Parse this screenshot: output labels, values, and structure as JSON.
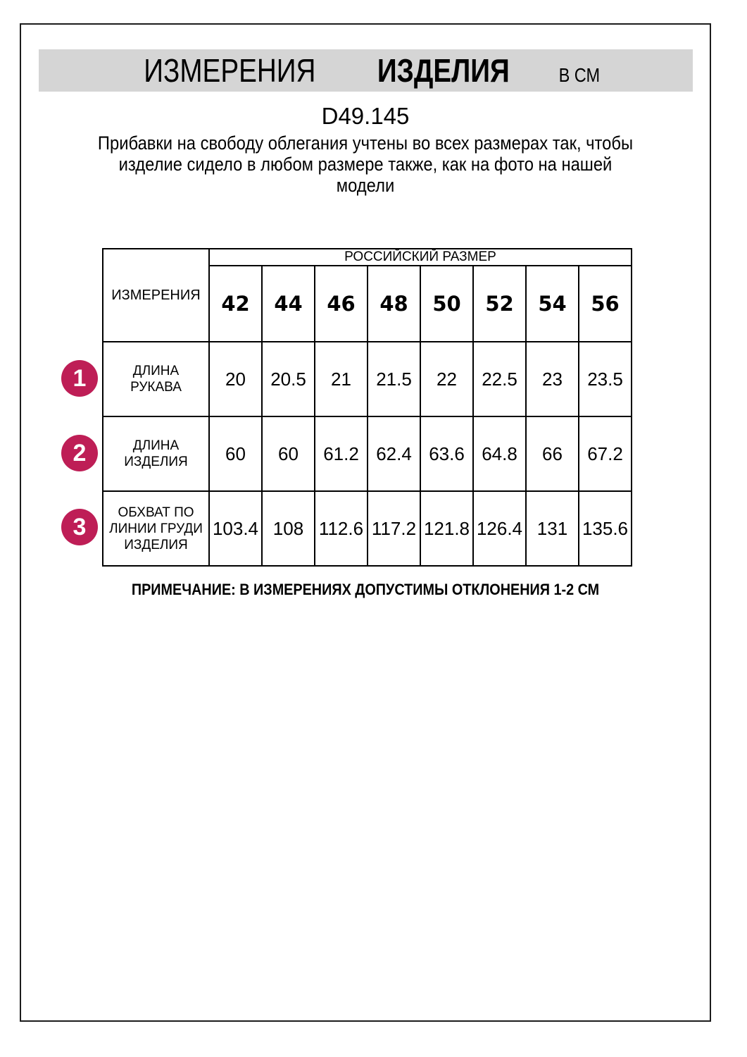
{
  "header": {
    "title_word1": "ИЗМЕРЕНИЯ",
    "title_word2": "ИЗДЕЛИЯ",
    "unit": "В СМ"
  },
  "article": "D49.145",
  "description": {
    "line1": "Прибавки на свободу облегания учтены во всех размерах так, чтобы",
    "line2": "изделие сидело в любом размере также, как на фото на нашей",
    "line3": "модели"
  },
  "table": {
    "corner_header": "ИЗМЕРЕНИЯ",
    "group_header": "РОССИЙСКИЙ РАЗМЕР",
    "sizes": [
      "42",
      "44",
      "46",
      "48",
      "50",
      "52",
      "54",
      "56"
    ],
    "rows": [
      {
        "num": "1",
        "label": "ДЛИНА РУКАВА",
        "values": [
          "20",
          "20.5",
          "21",
          "21.5",
          "22",
          "22.5",
          "23",
          "23.5"
        ]
      },
      {
        "num": "2",
        "label": "ДЛИНА ИЗДЕЛИЯ",
        "values": [
          "60",
          "60",
          "61.2",
          "62.4",
          "63.6",
          "64.8",
          "66",
          "67.2"
        ]
      },
      {
        "num": "3",
        "label": "ОБХВАТ ПО ЛИНИИ ГРУДИ ИЗДЕЛИЯ",
        "values": [
          "103.4",
          "108",
          "112.6",
          "117.2",
          "121.8",
          "126.4",
          "131",
          "135.6"
        ]
      }
    ]
  },
  "note": "ПРИМЕЧАНИЕ: В ИЗМЕРЕНИЯХ ДОПУСТИМЫ ОТКЛОНЕНИЯ 1-2 СМ",
  "colors": {
    "accent": "#be1e56",
    "header_bg": "#d5d5d5",
    "border": "#000000"
  }
}
